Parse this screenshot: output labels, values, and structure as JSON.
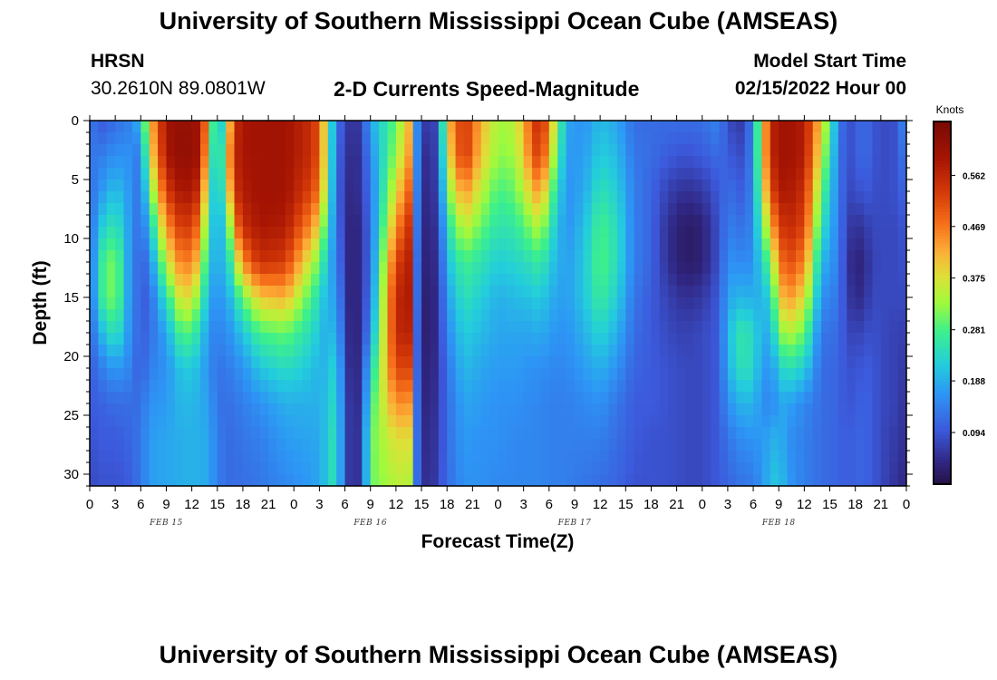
{
  "header": {
    "title": "University of Southern Mississippi Ocean Cube (AMSEAS)",
    "title_bottom": "University of Southern Mississippi Ocean Cube (AMSEAS)",
    "station": "HRSN",
    "coords": "30.2610N  89.0801W",
    "plot_title": "2-D Currents Speed-Magnitude",
    "model_start_label": "Model Start Time",
    "model_start_value": "02/15/2022 Hour 00"
  },
  "chart_data": {
    "type": "heatmap",
    "title": "2-D Currents Speed-Magnitude",
    "xlabel": "Forecast Time(Z)",
    "ylabel": "Depth (ft)",
    "x_tick_labels": [
      "0",
      "3",
      "6",
      "9",
      "12",
      "15",
      "18",
      "21",
      "0",
      "3",
      "6",
      "9",
      "12",
      "15",
      "18",
      "21",
      "0",
      "3",
      "6",
      "9",
      "12",
      "15",
      "18",
      "21",
      "0",
      "3",
      "6",
      "9",
      "12",
      "15",
      "18",
      "21",
      "0"
    ],
    "date_labels": [
      {
        "text": "FEB 15",
        "hour": 9
      },
      {
        "text": "FEB 16",
        "hour": 33
      },
      {
        "text": "FEB 17",
        "hour": 57
      },
      {
        "text": "FEB 18",
        "hour": 81
      }
    ],
    "xlim_hours": [
      0,
      96
    ],
    "y_ticks": [
      0,
      5,
      10,
      15,
      20,
      25,
      30
    ],
    "ylim_ft": [
      0,
      31
    ],
    "colorbar": {
      "unit": "Knots",
      "range": [
        0,
        0.66
      ],
      "ticks": [
        0.094,
        0.188,
        0.281,
        0.375,
        0.469,
        0.562
      ]
    },
    "profile_hours": [
      0,
      1.5,
      3,
      4.5,
      6,
      7,
      9,
      11,
      13,
      14,
      15,
      16,
      17,
      18,
      20,
      23,
      26,
      27,
      28,
      29,
      30,
      31,
      32,
      33,
      36,
      38,
      38.5,
      39,
      40,
      41,
      42,
      44,
      46,
      48,
      50,
      52,
      53,
      54,
      56,
      58,
      60,
      62,
      64,
      66,
      68,
      70,
      72,
      74,
      75,
      77,
      78,
      80,
      81,
      82,
      84,
      86,
      88,
      89,
      90,
      91,
      92,
      93,
      95,
      96
    ],
    "profile_depths_ft": [
      0,
      3,
      6,
      9,
      12,
      15,
      18,
      21,
      24,
      27,
      31
    ],
    "speed_knots": [
      [
        0.13,
        0.13,
        0.12,
        0.12,
        0.12,
        0.12,
        0.11,
        0.1,
        0.1,
        0.09,
        0.08
      ],
      [
        0.1,
        0.14,
        0.17,
        0.22,
        0.27,
        0.27,
        0.2,
        0.14,
        0.11,
        0.1,
        0.09
      ],
      [
        0.12,
        0.16,
        0.21,
        0.26,
        0.32,
        0.32,
        0.26,
        0.17,
        0.12,
        0.1,
        0.09
      ],
      [
        0.14,
        0.16,
        0.17,
        0.18,
        0.18,
        0.18,
        0.17,
        0.15,
        0.12,
        0.11,
        0.1
      ],
      [
        0.2,
        0.13,
        0.12,
        0.11,
        0.1,
        0.1,
        0.1,
        0.1,
        0.12,
        0.13,
        0.13
      ],
      [
        0.4,
        0.36,
        0.28,
        0.2,
        0.14,
        0.11,
        0.12,
        0.14,
        0.16,
        0.17,
        0.17
      ],
      [
        0.6,
        0.59,
        0.53,
        0.44,
        0.35,
        0.25,
        0.18,
        0.16,
        0.17,
        0.18,
        0.18
      ],
      [
        0.62,
        0.63,
        0.6,
        0.55,
        0.48,
        0.4,
        0.3,
        0.22,
        0.2,
        0.19,
        0.19
      ],
      [
        0.6,
        0.6,
        0.55,
        0.47,
        0.4,
        0.31,
        0.24,
        0.2,
        0.19,
        0.19,
        0.19
      ],
      [
        0.4,
        0.34,
        0.27,
        0.22,
        0.19,
        0.17,
        0.15,
        0.15,
        0.17,
        0.18,
        0.18
      ],
      [
        0.15,
        0.16,
        0.18,
        0.2,
        0.2,
        0.17,
        0.15,
        0.13,
        0.13,
        0.14,
        0.14
      ],
      [
        0.3,
        0.36,
        0.3,
        0.21,
        0.19,
        0.17,
        0.15,
        0.13,
        0.12,
        0.12,
        0.12
      ],
      [
        0.55,
        0.56,
        0.54,
        0.45,
        0.32,
        0.23,
        0.18,
        0.15,
        0.13,
        0.12,
        0.12
      ],
      [
        0.59,
        0.59,
        0.58,
        0.55,
        0.45,
        0.3,
        0.21,
        0.16,
        0.14,
        0.13,
        0.12
      ],
      [
        0.6,
        0.6,
        0.6,
        0.59,
        0.55,
        0.4,
        0.28,
        0.21,
        0.16,
        0.14,
        0.13
      ],
      [
        0.6,
        0.6,
        0.6,
        0.58,
        0.53,
        0.42,
        0.3,
        0.24,
        0.19,
        0.17,
        0.15
      ],
      [
        0.55,
        0.55,
        0.52,
        0.45,
        0.35,
        0.28,
        0.24,
        0.21,
        0.19,
        0.18,
        0.17
      ],
      [
        0.5,
        0.5,
        0.47,
        0.38,
        0.3,
        0.24,
        0.21,
        0.19,
        0.19,
        0.18,
        0.18
      ],
      [
        0.3,
        0.3,
        0.28,
        0.24,
        0.2,
        0.18,
        0.18,
        0.2,
        0.21,
        0.22,
        0.22
      ],
      [
        0.13,
        0.12,
        0.12,
        0.13,
        0.15,
        0.18,
        0.21,
        0.24,
        0.25,
        0.26,
        0.26
      ],
      [
        0.08,
        0.07,
        0.06,
        0.06,
        0.06,
        0.06,
        0.07,
        0.08,
        0.09,
        0.09,
        0.09
      ],
      [
        0.04,
        0.03,
        0.03,
        0.02,
        0.02,
        0.02,
        0.02,
        0.02,
        0.03,
        0.03,
        0.03
      ],
      [
        0.08,
        0.07,
        0.07,
        0.06,
        0.06,
        0.06,
        0.06,
        0.07,
        0.07,
        0.08,
        0.08
      ],
      [
        0.18,
        0.15,
        0.13,
        0.12,
        0.12,
        0.13,
        0.16,
        0.22,
        0.27,
        0.3,
        0.3
      ],
      [
        0.3,
        0.33,
        0.38,
        0.45,
        0.52,
        0.56,
        0.56,
        0.52,
        0.45,
        0.38,
        0.35
      ],
      [
        0.45,
        0.47,
        0.52,
        0.57,
        0.59,
        0.59,
        0.57,
        0.52,
        0.44,
        0.38,
        0.34
      ],
      [
        0.15,
        0.15,
        0.14,
        0.13,
        0.12,
        0.12,
        0.11,
        0.11,
        0.12,
        0.12,
        0.12
      ],
      [
        0.08,
        0.06,
        0.05,
        0.05,
        0.04,
        0.04,
        0.04,
        0.04,
        0.05,
        0.05,
        0.06
      ],
      [
        0.05,
        0.04,
        0.04,
        0.03,
        0.03,
        0.02,
        0.02,
        0.03,
        0.03,
        0.04,
        0.04
      ],
      [
        0.1,
        0.09,
        0.08,
        0.07,
        0.06,
        0.06,
        0.06,
        0.06,
        0.07,
        0.07,
        0.08
      ],
      [
        0.4,
        0.36,
        0.3,
        0.24,
        0.2,
        0.17,
        0.15,
        0.13,
        0.12,
        0.12,
        0.12
      ],
      [
        0.55,
        0.55,
        0.45,
        0.36,
        0.28,
        0.25,
        0.22,
        0.2,
        0.18,
        0.17,
        0.16
      ],
      [
        0.42,
        0.4,
        0.35,
        0.3,
        0.25,
        0.22,
        0.2,
        0.18,
        0.17,
        0.16,
        0.16
      ],
      [
        0.33,
        0.32,
        0.28,
        0.25,
        0.22,
        0.19,
        0.18,
        0.17,
        0.16,
        0.16,
        0.15
      ],
      [
        0.35,
        0.33,
        0.3,
        0.26,
        0.23,
        0.2,
        0.18,
        0.17,
        0.16,
        0.15,
        0.15
      ],
      [
        0.5,
        0.48,
        0.4,
        0.32,
        0.25,
        0.21,
        0.18,
        0.16,
        0.15,
        0.15,
        0.15
      ],
      [
        0.58,
        0.55,
        0.45,
        0.35,
        0.27,
        0.22,
        0.19,
        0.16,
        0.15,
        0.15,
        0.15
      ],
      [
        0.45,
        0.4,
        0.32,
        0.26,
        0.22,
        0.19,
        0.17,
        0.15,
        0.14,
        0.14,
        0.14
      ],
      [
        0.18,
        0.17,
        0.16,
        0.16,
        0.17,
        0.17,
        0.16,
        0.15,
        0.14,
        0.14,
        0.14
      ],
      [
        0.16,
        0.17,
        0.18,
        0.2,
        0.21,
        0.21,
        0.19,
        0.17,
        0.15,
        0.14,
        0.13
      ],
      [
        0.2,
        0.22,
        0.25,
        0.28,
        0.29,
        0.27,
        0.23,
        0.19,
        0.16,
        0.14,
        0.12
      ],
      [
        0.18,
        0.2,
        0.22,
        0.24,
        0.24,
        0.22,
        0.19,
        0.16,
        0.13,
        0.12,
        0.11
      ],
      [
        0.12,
        0.13,
        0.14,
        0.14,
        0.14,
        0.13,
        0.12,
        0.11,
        0.1,
        0.1,
        0.09
      ],
      [
        0.12,
        0.12,
        0.11,
        0.11,
        0.11,
        0.1,
        0.1,
        0.1,
        0.1,
        0.09,
        0.09
      ],
      [
        0.12,
        0.1,
        0.07,
        0.05,
        0.05,
        0.07,
        0.08,
        0.09,
        0.09,
        0.09,
        0.09
      ],
      [
        0.12,
        0.09,
        0.05,
        0.02,
        0.02,
        0.05,
        0.07,
        0.08,
        0.08,
        0.08,
        0.08
      ],
      [
        0.12,
        0.1,
        0.06,
        0.03,
        0.03,
        0.06,
        0.08,
        0.08,
        0.08,
        0.08,
        0.08
      ],
      [
        0.15,
        0.12,
        0.1,
        0.09,
        0.09,
        0.1,
        0.1,
        0.1,
        0.1,
        0.1,
        0.1
      ],
      [
        0.08,
        0.1,
        0.12,
        0.14,
        0.16,
        0.18,
        0.2,
        0.19,
        0.16,
        0.13,
        0.11
      ],
      [
        0.06,
        0.08,
        0.1,
        0.12,
        0.15,
        0.2,
        0.27,
        0.26,
        0.2,
        0.16,
        0.13
      ],
      [
        0.17,
        0.17,
        0.16,
        0.16,
        0.16,
        0.18,
        0.22,
        0.22,
        0.19,
        0.16,
        0.13
      ],
      [
        0.55,
        0.55,
        0.5,
        0.4,
        0.3,
        0.22,
        0.18,
        0.15,
        0.14,
        0.18,
        0.2
      ],
      [
        0.6,
        0.6,
        0.58,
        0.52,
        0.45,
        0.38,
        0.3,
        0.22,
        0.18,
        0.2,
        0.22
      ],
      [
        0.6,
        0.6,
        0.59,
        0.56,
        0.52,
        0.45,
        0.35,
        0.25,
        0.18,
        0.16,
        0.17
      ],
      [
        0.58,
        0.58,
        0.55,
        0.52,
        0.46,
        0.38,
        0.3,
        0.22,
        0.15,
        0.14,
        0.14
      ],
      [
        0.4,
        0.36,
        0.3,
        0.25,
        0.2,
        0.16,
        0.13,
        0.12,
        0.12,
        0.12,
        0.12
      ],
      [
        0.15,
        0.14,
        0.14,
        0.14,
        0.14,
        0.13,
        0.12,
        0.11,
        0.11,
        0.11,
        0.11
      ],
      [
        0.08,
        0.08,
        0.08,
        0.07,
        0.06,
        0.07,
        0.08,
        0.09,
        0.09,
        0.1,
        0.1
      ],
      [
        0.1,
        0.1,
        0.08,
        0.05,
        0.03,
        0.04,
        0.07,
        0.09,
        0.1,
        0.11,
        0.11
      ],
      [
        0.12,
        0.12,
        0.1,
        0.06,
        0.04,
        0.05,
        0.08,
        0.1,
        0.11,
        0.11,
        0.11
      ],
      [
        0.1,
        0.1,
        0.09,
        0.08,
        0.07,
        0.08,
        0.09,
        0.1,
        0.1,
        0.1,
        0.1
      ],
      [
        0.08,
        0.08,
        0.08,
        0.08,
        0.08,
        0.08,
        0.08,
        0.08,
        0.08,
        0.08,
        0.08
      ],
      [
        0.09,
        0.09,
        0.09,
        0.08,
        0.08,
        0.08,
        0.07,
        0.07,
        0.07,
        0.06,
        0.05
      ],
      [
        0.18,
        0.15,
        0.12,
        0.1,
        0.09,
        0.08,
        0.07,
        0.06,
        0.05,
        0.05,
        0.04
      ]
    ]
  }
}
